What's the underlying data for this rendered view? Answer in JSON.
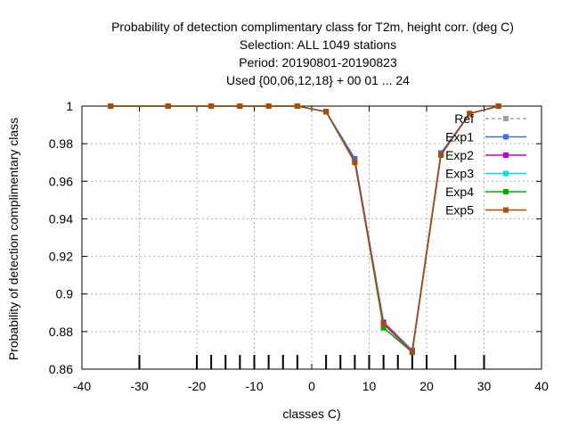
{
  "chart_data": {
    "type": "line",
    "title_lines": [
      "Probability of detection complimentary class  for T2m, height corr. (deg C)",
      "Selection: ALL    1049 stations",
      "Period: 20190801-20190823",
      "Used {00,06,12,18} + 00 01 ... 24"
    ],
    "xlabel": "classes C)",
    "ylabel": "Probability of detection complimentary class",
    "xlim": [
      -40,
      40
    ],
    "ylim": [
      0.86,
      1.0
    ],
    "xticks": [
      -40,
      -30,
      -20,
      -10,
      0,
      10,
      20,
      30,
      40
    ],
    "yticks": [
      0.86,
      0.88,
      0.9,
      0.92,
      0.94,
      0.96,
      0.98,
      1.0
    ],
    "ytick_labels": [
      "0.86",
      "0.88",
      "0.9",
      "0.92",
      "0.94",
      "0.96",
      "0.98",
      "1"
    ],
    "class_marks": [
      -30,
      -20,
      -17.5,
      -15,
      -12.5,
      -10,
      -7.5,
      -5,
      -2.5,
      2.5,
      5,
      7.5,
      10,
      12.5,
      15,
      17.5,
      20,
      25,
      30
    ],
    "grid": true,
    "legend_position": "top-right",
    "x": [
      -35,
      -25,
      -17.5,
      -12.5,
      -7.5,
      -2.5,
      2.5,
      7.5,
      12.5,
      17.5,
      22.5,
      27.5,
      32.5
    ],
    "series": [
      {
        "name": "Ref",
        "color": "#a0a0a0",
        "dashed": true,
        "values": [
          1.0,
          1.0,
          1.0,
          1.0,
          1.0,
          1.0,
          0.997,
          0.971,
          0.884,
          0.87,
          0.974,
          0.996,
          1.0
        ]
      },
      {
        "name": "Exp1",
        "color": "#3c6fd9",
        "dashed": false,
        "values": [
          1.0,
          1.0,
          1.0,
          1.0,
          1.0,
          1.0,
          0.997,
          0.972,
          0.884,
          0.87,
          0.975,
          0.996,
          1.0
        ]
      },
      {
        "name": "Exp2",
        "color": "#c000e0",
        "dashed": false,
        "values": [
          1.0,
          1.0,
          1.0,
          1.0,
          1.0,
          1.0,
          0.997,
          0.972,
          0.885,
          0.87,
          0.975,
          0.996,
          1.0
        ]
      },
      {
        "name": "Exp3",
        "color": "#00e0e0",
        "dashed": false,
        "values": [
          1.0,
          1.0,
          1.0,
          1.0,
          1.0,
          1.0,
          0.997,
          0.971,
          0.882,
          0.869,
          0.974,
          0.996,
          1.0
        ]
      },
      {
        "name": "Exp4",
        "color": "#00b000",
        "dashed": false,
        "values": [
          1.0,
          1.0,
          1.0,
          1.0,
          1.0,
          1.0,
          0.997,
          0.971,
          0.882,
          0.869,
          0.974,
          0.996,
          1.0
        ]
      },
      {
        "name": "Exp5",
        "color": "#b04a00",
        "dashed": false,
        "values": [
          1.0,
          1.0,
          1.0,
          1.0,
          1.0,
          1.0,
          0.997,
          0.97,
          0.884,
          0.869,
          0.974,
          0.996,
          1.0
        ]
      }
    ]
  }
}
